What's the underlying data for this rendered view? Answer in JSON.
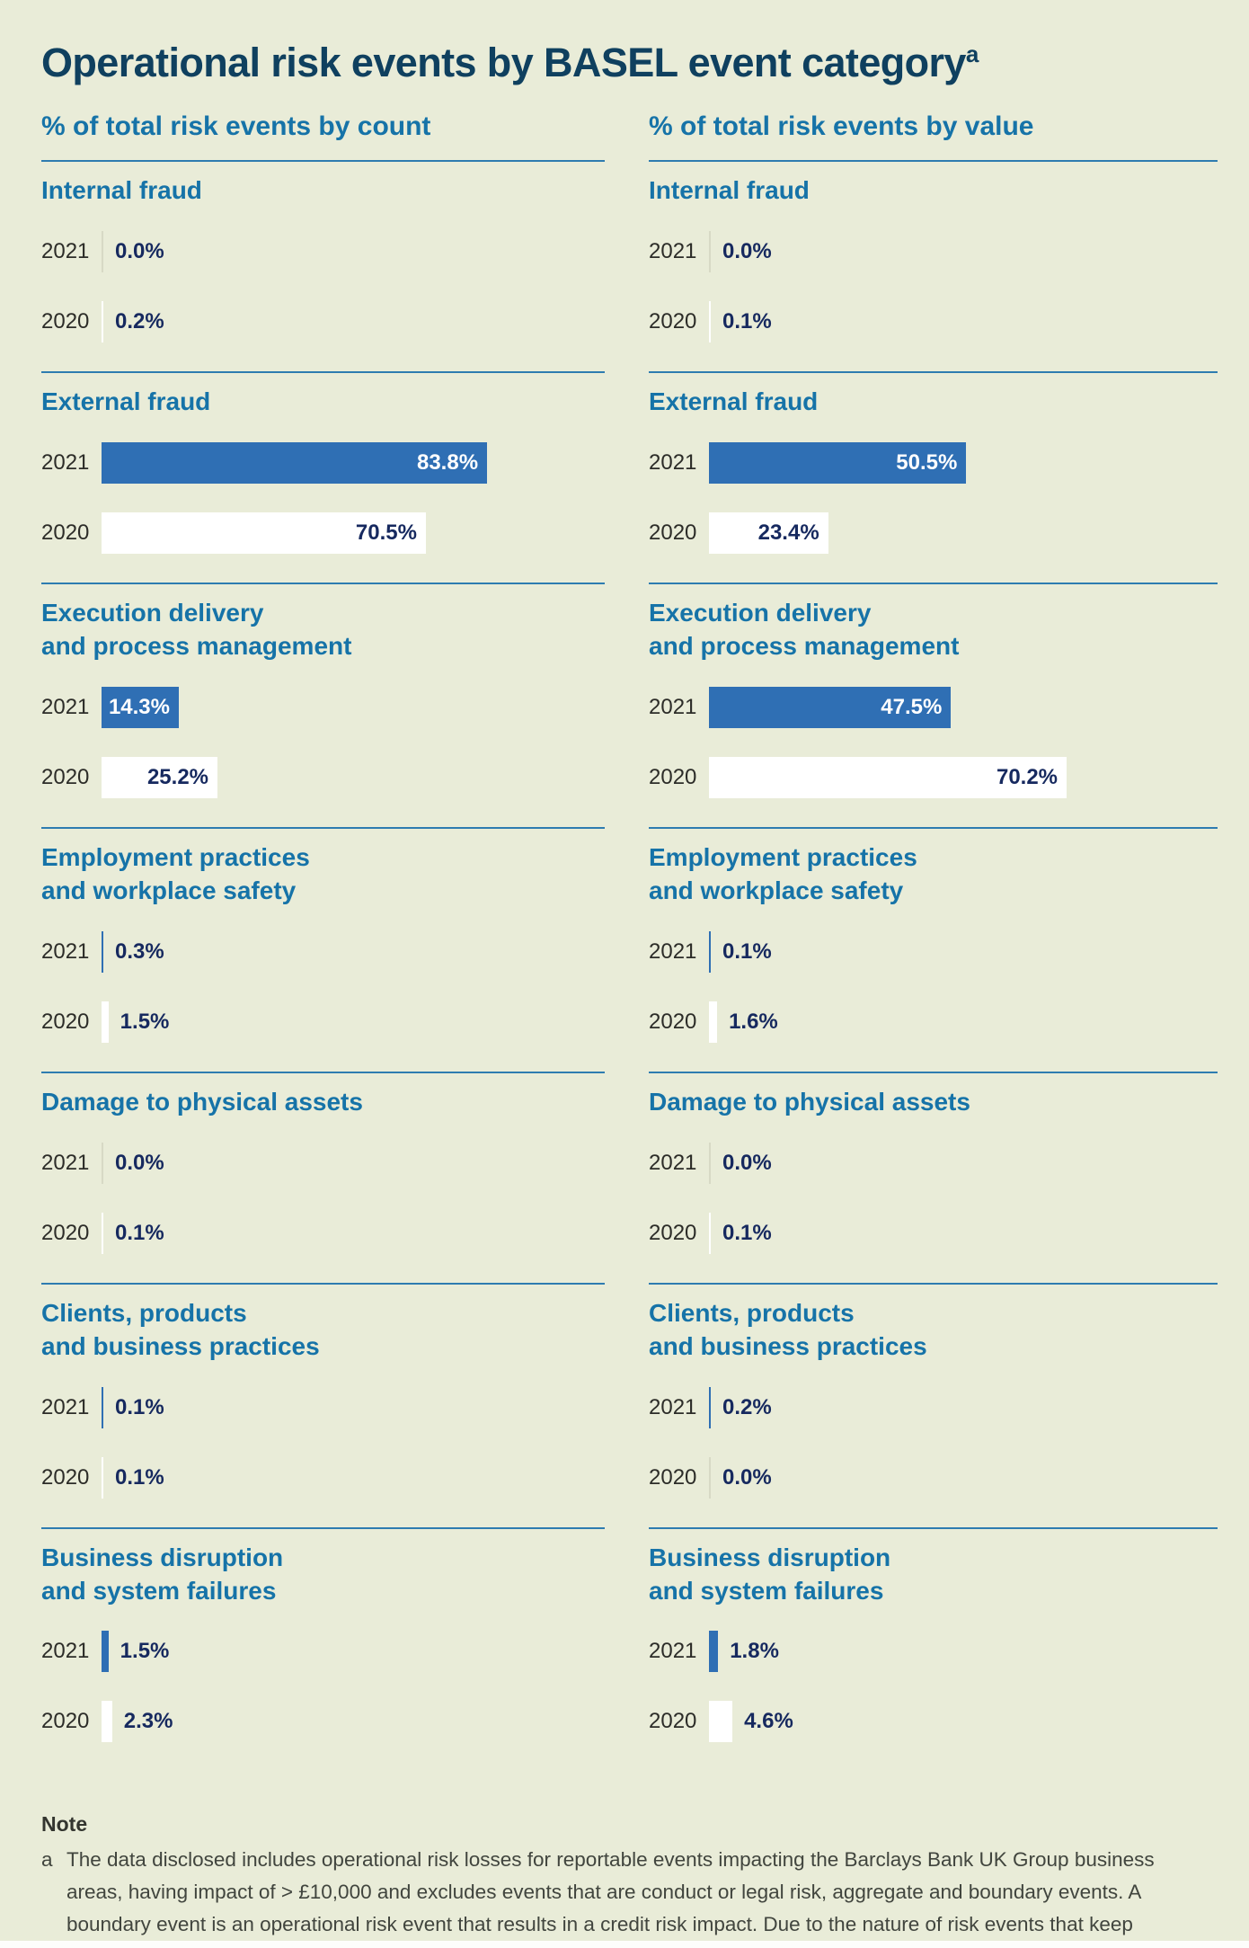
{
  "page": {
    "title": "Operational risk events by BASEL event category",
    "title_sup": "a"
  },
  "years": [
    "2021",
    "2020"
  ],
  "colors": {
    "background": "#e9ecd8",
    "bar_2021": "#2f6fb4",
    "bar_2020": "#ffffff",
    "zero_tick": "#d7d9c5",
    "heading_blue": "#1673a8",
    "title_navy": "#0f405f",
    "value_navy": "#16295f",
    "divider_blue": "#2e7cb0"
  },
  "chart_data": {
    "type": "bar",
    "orientation": "horizontal",
    "title": "Operational risk events by BASEL event category",
    "unit": "%",
    "xlim": [
      0,
      100
    ],
    "grid": false,
    "legend": "none (years labelled per row: 2021 = blue bar, 2020 = white bar)",
    "categories": [
      "Internal fraud",
      "External fraud",
      "Execution delivery\nand process management",
      "Employment practices\nand workplace safety",
      "Damage to physical assets",
      "Clients, products\nand business practices",
      "Business disruption\nand system failures"
    ],
    "panels": [
      {
        "subtitle": "% of total risk events by count",
        "series": [
          {
            "name": "2021",
            "values": [
              0.0,
              83.8,
              14.3,
              0.3,
              0.0,
              0.1,
              1.5
            ],
            "labels": [
              "0.0%",
              "83.8%",
              "14.3%",
              "0.3%",
              "0.0%",
              "0.1%",
              "1.5%"
            ]
          },
          {
            "name": "2020",
            "values": [
              0.2,
              70.5,
              25.2,
              1.5,
              0.1,
              0.1,
              2.3
            ],
            "labels": [
              "0.2%",
              "70.5%",
              "25.2%",
              "1.5%",
              "0.1%",
              "0.1%",
              "2.3%"
            ]
          }
        ]
      },
      {
        "subtitle": "% of total risk events by value",
        "series": [
          {
            "name": "2021",
            "values": [
              0.0,
              50.5,
              47.5,
              0.1,
              0.0,
              0.2,
              1.8
            ],
            "labels": [
              "0.0%",
              "50.5%",
              "47.5%",
              "0.1%",
              "0.0%",
              "0.2%",
              "1.8%"
            ]
          },
          {
            "name": "2020",
            "values": [
              0.1,
              23.4,
              70.2,
              1.6,
              0.1,
              0.0,
              4.6
            ],
            "labels": [
              "0.1%",
              "23.4%",
              "70.2%",
              "1.6%",
              "0.1%",
              "0.0%",
              "4.6%"
            ]
          }
        ]
      }
    ]
  },
  "note": {
    "heading": "Note",
    "marker": "a",
    "text": "The data disclosed includes operational risk losses for reportable events impacting the Barclays Bank UK Group business areas, having impact of > £10,000 and excludes events that are conduct or legal risk, aggregate and boundary events. A boundary event is an operational risk event that results in a credit risk impact. Due to the nature of risk events that keep evolving, prior year losses are updated."
  }
}
